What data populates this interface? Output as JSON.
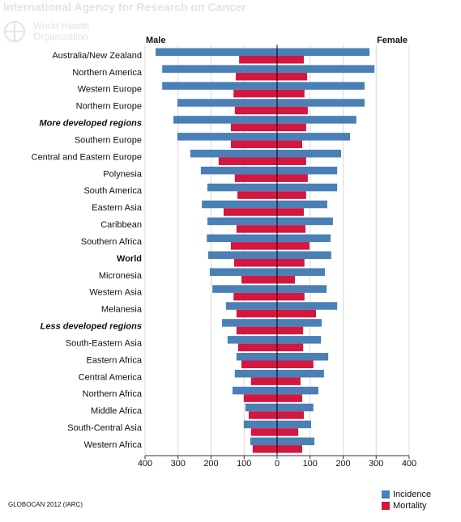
{
  "header": {
    "agency": "International Agency for Research on Cancer",
    "organization": [
      "World Health",
      "Organization"
    ]
  },
  "chart_data": {
    "type": "butterfly-bar",
    "groups": [
      "Male",
      "Female"
    ],
    "categories": [
      "Australia/New Zealand",
      "Northern America",
      "Western Europe",
      "Northern Europe",
      "More developed regions",
      "Southern Europe",
      "Central and Eastern Europe",
      "Polynesia",
      "South America",
      "Eastern Asia",
      "Caribbean",
      "Southern Africa",
      "World",
      "Micronesia",
      "Western Asia",
      "Melanesia",
      "Less developed regions",
      "South-Eastern Asia",
      "Eastern Africa",
      "Central America",
      "Northern Africa",
      "Middle Africa",
      "South-Central Asia",
      "Western Africa"
    ],
    "category_styles": [
      "normal",
      "normal",
      "normal",
      "normal",
      "bold-italic",
      "normal",
      "normal",
      "normal",
      "normal",
      "normal",
      "normal",
      "normal",
      "bold",
      "normal",
      "normal",
      "normal",
      "bold-italic",
      "normal",
      "normal",
      "normal",
      "normal",
      "normal",
      "normal",
      "normal"
    ],
    "series": [
      {
        "name": "Incidence",
        "color": "#4a80b6",
        "values": [
          [
            368,
            348,
            348,
            302,
            314,
            302,
            263,
            231,
            211,
            228,
            211,
            213,
            209,
            204,
            196,
            155,
            167,
            150,
            123,
            128,
            135,
            96,
            101,
            81
          ],
          [
            280,
            295,
            265,
            265,
            240,
            221,
            194,
            182,
            182,
            152,
            169,
            162,
            164,
            145,
            150,
            182,
            135,
            133,
            155,
            142,
            125,
            110,
            103,
            113
          ]
        ]
      },
      {
        "name": "Mortality",
        "color": "#d4173f",
        "values": [
          [
            115,
            125,
            132,
            128,
            140,
            140,
            177,
            128,
            120,
            162,
            123,
            140,
            130,
            108,
            132,
            123,
            123,
            118,
            108,
            79,
            101,
            86,
            79,
            74
          ],
          [
            81,
            91,
            83,
            93,
            88,
            76,
            88,
            93,
            88,
            81,
            86,
            98,
            83,
            54,
            83,
            118,
            79,
            79,
            110,
            71,
            76,
            81,
            64,
            76
          ]
        ]
      }
    ],
    "xlim": [
      0,
      400
    ],
    "xticks": [
      0,
      100,
      200,
      300,
      400
    ],
    "grid": true,
    "legend": "bottom-right",
    "source": "GLOBOCAN 2012 (IARC)"
  }
}
